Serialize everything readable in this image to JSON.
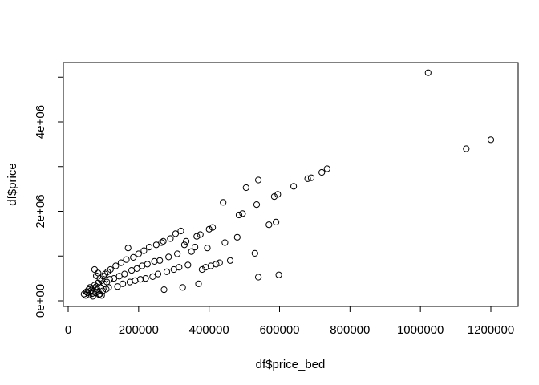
{
  "chart_data": {
    "type": "scatter",
    "xlabel": "df$price_bed",
    "ylabel": "df$price",
    "xlim": [
      0,
      1200000
    ],
    "ylim": [
      0,
      5000000
    ],
    "x_ticks": [
      {
        "value": 0,
        "label": "0"
      },
      {
        "value": 200000,
        "label": "200000"
      },
      {
        "value": 400000,
        "label": "400000"
      },
      {
        "value": 600000,
        "label": "600000"
      },
      {
        "value": 800000,
        "label": "800000"
      },
      {
        "value": 1000000,
        "label": "1000000"
      },
      {
        "value": 1200000,
        "label": "1200000"
      }
    ],
    "y_ticks": [
      {
        "value": 0,
        "label": "0e+00"
      },
      {
        "value": 2000000,
        "label": "2e+06"
      },
      {
        "value": 4000000,
        "label": "4e+06"
      }
    ],
    "grid": false,
    "marker": "open-circle",
    "points": [
      [
        45000,
        150000
      ],
      [
        50000,
        120000
      ],
      [
        52000,
        200000
      ],
      [
        55000,
        180000
      ],
      [
        58000,
        250000
      ],
      [
        60000,
        130000
      ],
      [
        62000,
        300000
      ],
      [
        65000,
        230000
      ],
      [
        68000,
        160000
      ],
      [
        70000,
        280000
      ],
      [
        72000,
        210000
      ],
      [
        75000,
        350000
      ],
      [
        78000,
        180000
      ],
      [
        80000,
        320000
      ],
      [
        82000,
        260000
      ],
      [
        85000,
        400000
      ],
      [
        88000,
        140000
      ],
      [
        90000,
        500000
      ],
      [
        92000,
        300000
      ],
      [
        95000,
        450000
      ],
      [
        98000,
        220000
      ],
      [
        100000,
        550000
      ],
      [
        102000,
        380000
      ],
      [
        105000,
        600000
      ],
      [
        108000,
        260000
      ],
      [
        110000,
        420000
      ],
      [
        112000,
        650000
      ],
      [
        115000,
        300000
      ],
      [
        118000,
        480000
      ],
      [
        120000,
        700000
      ],
      [
        75000,
        700000
      ],
      [
        80000,
        560000
      ],
      [
        85000,
        620000
      ],
      [
        90000,
        150000
      ],
      [
        95000,
        120000
      ],
      [
        70000,
        100000
      ],
      [
        130000,
        500000
      ],
      [
        135000,
        780000
      ],
      [
        140000,
        320000
      ],
      [
        145000,
        550000
      ],
      [
        150000,
        850000
      ],
      [
        155000,
        380000
      ],
      [
        160000,
        600000
      ],
      [
        165000,
        920000
      ],
      [
        170000,
        1180000
      ],
      [
        175000,
        420000
      ],
      [
        180000,
        680000
      ],
      [
        185000,
        970000
      ],
      [
        190000,
        450000
      ],
      [
        195000,
        720000
      ],
      [
        200000,
        1050000
      ],
      [
        205000,
        480000
      ],
      [
        210000,
        780000
      ],
      [
        215000,
        1120000
      ],
      [
        220000,
        500000
      ],
      [
        225000,
        820000
      ],
      [
        230000,
        1200000
      ],
      [
        240000,
        540000
      ],
      [
        245000,
        880000
      ],
      [
        250000,
        1250000
      ],
      [
        255000,
        600000
      ],
      [
        260000,
        900000
      ],
      [
        265000,
        1300000
      ],
      [
        270000,
        1330000
      ],
      [
        272000,
        250000
      ],
      [
        280000,
        650000
      ],
      [
        285000,
        980000
      ],
      [
        290000,
        1390000
      ],
      [
        300000,
        700000
      ],
      [
        305000,
        1500000
      ],
      [
        310000,
        1050000
      ],
      [
        315000,
        750000
      ],
      [
        320000,
        1560000
      ],
      [
        325000,
        300000
      ],
      [
        330000,
        1250000
      ],
      [
        335000,
        1330000
      ],
      [
        340000,
        800000
      ],
      [
        350000,
        1100000
      ],
      [
        360000,
        1200000
      ],
      [
        365000,
        1440000
      ],
      [
        370000,
        380000
      ],
      [
        375000,
        1480000
      ],
      [
        380000,
        700000
      ],
      [
        390000,
        750000
      ],
      [
        395000,
        1180000
      ],
      [
        400000,
        1600000
      ],
      [
        405000,
        780000
      ],
      [
        410000,
        1640000
      ],
      [
        420000,
        820000
      ],
      [
        430000,
        850000
      ],
      [
        440000,
        2200000
      ],
      [
        445000,
        1300000
      ],
      [
        460000,
        900000
      ],
      [
        480000,
        1420000
      ],
      [
        485000,
        1920000
      ],
      [
        495000,
        1950000
      ],
      [
        505000,
        2530000
      ],
      [
        530000,
        1060000
      ],
      [
        535000,
        2150000
      ],
      [
        540000,
        2700000
      ],
      [
        540000,
        530000
      ],
      [
        570000,
        1700000
      ],
      [
        585000,
        2330000
      ],
      [
        590000,
        1760000
      ],
      [
        595000,
        2380000
      ],
      [
        598000,
        580000
      ],
      [
        640000,
        2560000
      ],
      [
        680000,
        2730000
      ],
      [
        690000,
        2750000
      ],
      [
        720000,
        2870000
      ],
      [
        735000,
        2950000
      ],
      [
        1022000,
        5100000
      ],
      [
        1130000,
        3400000
      ],
      [
        1200000,
        3600000
      ]
    ]
  }
}
